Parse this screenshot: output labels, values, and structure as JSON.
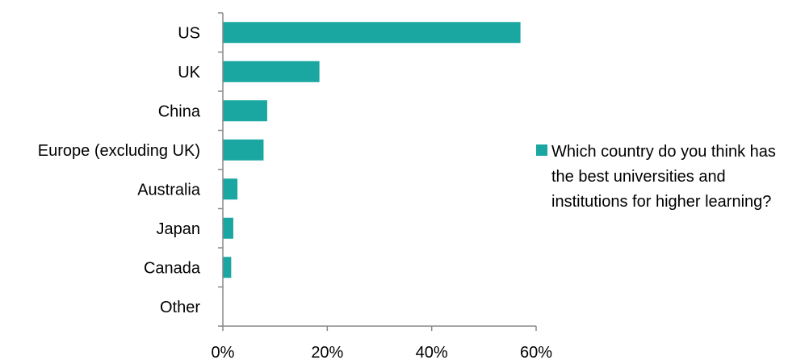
{
  "chart_data": {
    "type": "bar",
    "orientation": "horizontal",
    "categories": [
      "US",
      "UK",
      "China",
      "Europe (excluding UK)",
      "Australia",
      "Japan",
      "Canada",
      "Other"
    ],
    "series": [
      {
        "name": "Which country do you think has the best universities and institutions for higher learning?",
        "values": [
          57,
          18.5,
          8.5,
          7.8,
          2.8,
          2.0,
          1.6,
          0
        ],
        "color": "#1aa7a1"
      }
    ],
    "xlim": [
      0,
      60
    ],
    "xticks": [
      0,
      20,
      40,
      60
    ],
    "xtick_labels": [
      "0%",
      "20%",
      "40%",
      "60%"
    ],
    "value_unit": "%",
    "grid": false,
    "legend_position": "right",
    "title": "",
    "xlabel": "",
    "ylabel": ""
  }
}
